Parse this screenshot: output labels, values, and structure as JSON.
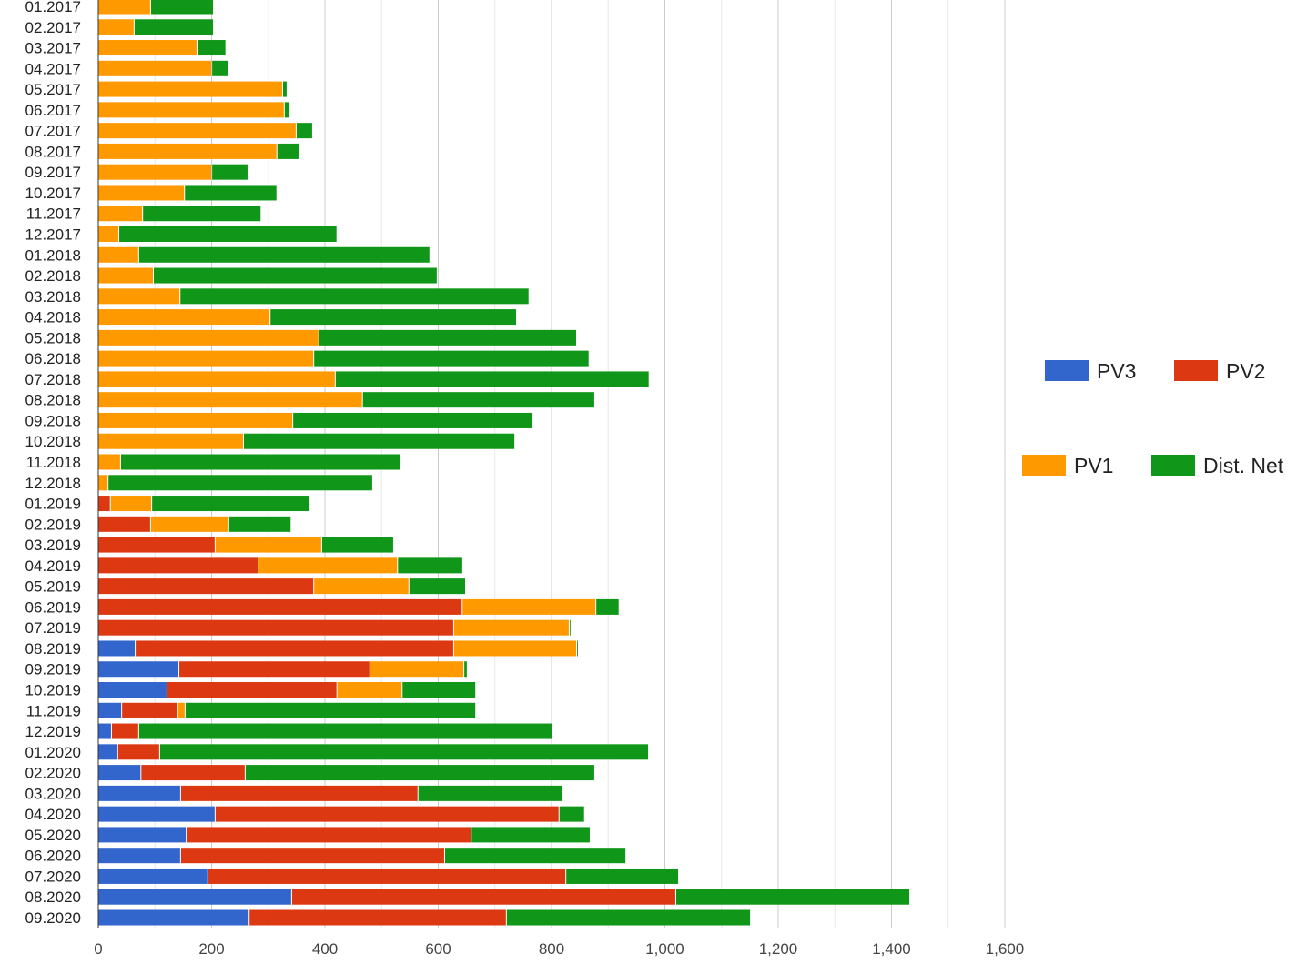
{
  "chart_data": {
    "type": "bar",
    "orientation": "horizontal",
    "stacked": true,
    "title": "",
    "xlabel": "",
    "ylabel": "",
    "xlim": [
      0,
      1600
    ],
    "x_ticks": [
      "0",
      "200",
      "400",
      "600",
      "800",
      "1,000",
      "1,200",
      "1,400",
      "1,600"
    ],
    "grid": true,
    "legend_placement": "right",
    "categories": [
      "01.2017",
      "02.2017",
      "03.2017",
      "04.2017",
      "05.2017",
      "06.2017",
      "07.2017",
      "08.2017",
      "09.2017",
      "10.2017",
      "11.2017",
      "12.2017",
      "01.2018",
      "02.2018",
      "03.2018",
      "04.2018",
      "05.2018",
      "06.2018",
      "07.2018",
      "08.2018",
      "09.2018",
      "10.2018",
      "11.2018",
      "12.2018",
      "01.2019",
      "02.2019",
      "03.2019",
      "04.2019",
      "05.2019",
      "06.2019",
      "07.2019",
      "08.2019",
      "09.2019",
      "10.2019",
      "11.2019",
      "12.2019",
      "01.2020",
      "02.2020",
      "03.2020",
      "04.2020",
      "05.2020",
      "06.2020",
      "07.2020",
      "08.2020",
      "09.2020"
    ],
    "series": [
      {
        "name": "PV3",
        "color": "#3366cc",
        "values": [
          0,
          0,
          0,
          0,
          0,
          0,
          0,
          0,
          0,
          0,
          0,
          0,
          0,
          0,
          0,
          0,
          0,
          0,
          0,
          0,
          0,
          0,
          0,
          0,
          0,
          0,
          0,
          0,
          0,
          0,
          0,
          66,
          143,
          122,
          42,
          24,
          35,
          76,
          146,
          207,
          156,
          146,
          194,
          342,
          267
        ]
      },
      {
        "name": "PV2",
        "color": "#dc3912",
        "values": [
          0,
          0,
          0,
          0,
          0,
          0,
          0,
          0,
          0,
          0,
          0,
          0,
          0,
          0,
          0,
          0,
          0,
          0,
          0,
          0,
          0,
          0,
          0,
          0,
          22,
          93,
          207,
          283,
          381,
          643,
          628,
          562,
          337,
          300,
          99,
          48,
          74,
          184,
          419,
          607,
          503,
          466,
          632,
          678,
          454
        ]
      },
      {
        "name": "PV1",
        "color": "#ff9900",
        "values": [
          93,
          64,
          175,
          201,
          326,
          329,
          350,
          316,
          201,
          153,
          79,
          37,
          72,
          98,
          145,
          304,
          390,
          381,
          419,
          467,
          344,
          257,
          40,
          18,
          73,
          138,
          188,
          246,
          168,
          236,
          204,
          217,
          166,
          115,
          13,
          0,
          0,
          0,
          0,
          0,
          0,
          0,
          0,
          0,
          0
        ]
      },
      {
        "name": "Dist. Net",
        "color": "#109618",
        "values": [
          111,
          140,
          51,
          29,
          8,
          10,
          29,
          39,
          64,
          163,
          209,
          385,
          514,
          501,
          616,
          435,
          455,
          486,
          554,
          410,
          424,
          479,
          495,
          467,
          278,
          110,
          127,
          115,
          100,
          41,
          3,
          3,
          6,
          130,
          513,
          730,
          863,
          617,
          256,
          45,
          210,
          320,
          199,
          413,
          431
        ]
      }
    ]
  }
}
